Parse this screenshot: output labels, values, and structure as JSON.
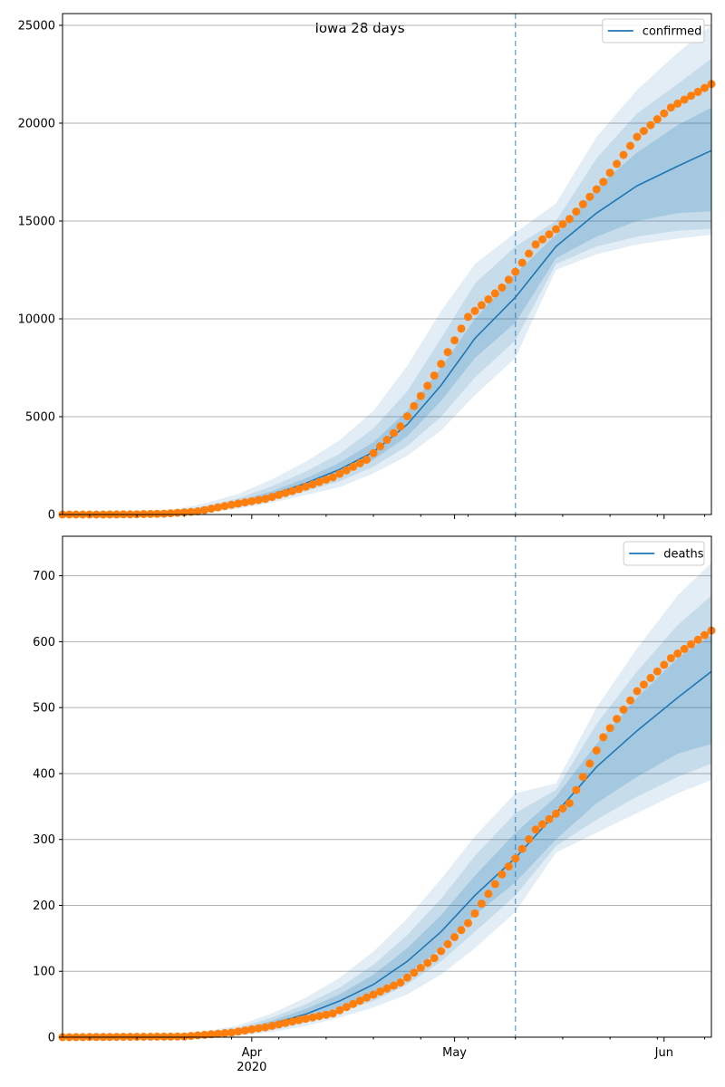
{
  "figure": {
    "title": "Iowa 28 days"
  },
  "colors": {
    "model_line": "#1f77b4",
    "band": "#1f77b4",
    "observed": "#ff7f0e",
    "forecast_marker": "#1f77b4",
    "grid": "#b0b0b0",
    "axes": "#000000"
  },
  "x_axis": {
    "start": "2020-03-04",
    "end": "2020-06-08",
    "forecast_start": "2020-05-10",
    "major_ticks": [
      {
        "date": "2020-04-01",
        "label": "Apr",
        "sublabel": "2020"
      },
      {
        "date": "2020-05-01",
        "label": "May",
        "sublabel": ""
      },
      {
        "date": "2020-06-01",
        "label": "Jun",
        "sublabel": ""
      }
    ],
    "minor_tick_dates": [
      "2020-03-08",
      "2020-03-15",
      "2020-03-22",
      "2020-03-29",
      "2020-04-05",
      "2020-04-12",
      "2020-04-19",
      "2020-04-26",
      "2020-05-03",
      "2020-05-10",
      "2020-05-17",
      "2020-05-24",
      "2020-05-31",
      "2020-06-07"
    ]
  },
  "chart_data": [
    {
      "type": "line",
      "title": "Iowa 28 days",
      "legend": [
        "confirmed"
      ],
      "legend_placement": "top-right",
      "grid": "horizontal",
      "ylim": [
        0,
        25600
      ],
      "yticks": [
        0,
        5000,
        10000,
        15000,
        20000,
        25000
      ],
      "xlim": [
        "2020-03-04",
        "2020-06-08"
      ],
      "forecast_start": "2020-05-10",
      "model": {
        "name": "confirmed",
        "dates": [
          "2020-03-04",
          "2020-03-14",
          "2020-03-20",
          "2020-03-25",
          "2020-03-30",
          "2020-04-04",
          "2020-04-09",
          "2020-04-14",
          "2020-04-19",
          "2020-04-24",
          "2020-04-29",
          "2020-05-04",
          "2020-05-10",
          "2020-05-16",
          "2020-05-22",
          "2020-05-28",
          "2020-06-03",
          "2020-06-08"
        ],
        "median": [
          0,
          20,
          80,
          250,
          550,
          1000,
          1600,
          2300,
          3200,
          4600,
          6600,
          9000,
          11100,
          13700,
          15400,
          16800,
          17800,
          18600
        ],
        "band_50": [
          [
            0,
            0
          ],
          [
            10,
            30
          ],
          [
            60,
            110
          ],
          [
            200,
            320
          ],
          [
            450,
            680
          ],
          [
            850,
            1200
          ],
          [
            1400,
            1850
          ],
          [
            2000,
            2650
          ],
          [
            2800,
            3700
          ],
          [
            4000,
            5300
          ],
          [
            5800,
            7500
          ],
          [
            8000,
            10000
          ],
          [
            9800,
            12300
          ],
          [
            13100,
            14300
          ],
          [
            14200,
            16700
          ],
          [
            15000,
            18500
          ],
          [
            15400,
            19900
          ],
          [
            15500,
            20800
          ]
        ],
        "band_80": [
          [
            0,
            0
          ],
          [
            5,
            50
          ],
          [
            40,
            160
          ],
          [
            160,
            420
          ],
          [
            380,
            830
          ],
          [
            720,
            1450
          ],
          [
            1200,
            2200
          ],
          [
            1700,
            3100
          ],
          [
            2450,
            4400
          ],
          [
            3500,
            6300
          ],
          [
            5000,
            9000
          ],
          [
            7000,
            11800
          ],
          [
            8900,
            13700
          ],
          [
            12800,
            15000
          ],
          [
            13700,
            18200
          ],
          [
            14200,
            20500
          ],
          [
            14500,
            22000
          ],
          [
            14600,
            23300
          ]
        ],
        "band_95": [
          [
            0,
            0
          ],
          [
            0,
            80
          ],
          [
            20,
            230
          ],
          [
            100,
            560
          ],
          [
            300,
            1050
          ],
          [
            600,
            1800
          ],
          [
            1000,
            2700
          ],
          [
            1400,
            3800
          ],
          [
            2100,
            5300
          ],
          [
            3000,
            7600
          ],
          [
            4300,
            10400
          ],
          [
            6100,
            12800
          ],
          [
            8000,
            14400
          ],
          [
            12500,
            15900
          ],
          [
            13300,
            19300
          ],
          [
            13800,
            21700
          ],
          [
            14100,
            23600
          ],
          [
            14300,
            25000
          ]
        ]
      },
      "observed": {
        "dates": [
          "2020-03-04",
          "2020-03-09",
          "2020-03-14",
          "2020-03-19",
          "2020-03-24",
          "2020-03-29",
          "2020-04-03",
          "2020-04-08",
          "2020-04-13",
          "2020-04-18",
          "2020-04-23",
          "2020-04-28",
          "2020-05-03",
          "2020-05-08",
          "2020-05-10",
          "2020-05-13",
          "2020-05-18",
          "2020-05-23",
          "2020-05-28",
          "2020-06-02",
          "2020-06-08"
        ],
        "values": [
          0,
          0,
          10,
          40,
          160,
          500,
          800,
          1300,
          1900,
          2800,
          4500,
          7100,
          10100,
          11600,
          12400,
          13800,
          15100,
          17000,
          19300,
          20800,
          22000
        ]
      }
    },
    {
      "type": "line",
      "title": "",
      "legend": [
        "deaths"
      ],
      "legend_placement": "top-right",
      "grid": "horizontal",
      "ylim": [
        0,
        760
      ],
      "yticks": [
        0,
        100,
        200,
        300,
        400,
        500,
        600,
        700
      ],
      "xlim": [
        "2020-03-04",
        "2020-06-08"
      ],
      "forecast_start": "2020-05-10",
      "model": {
        "name": "deaths",
        "dates": [
          "2020-03-04",
          "2020-03-24",
          "2020-03-30",
          "2020-04-04",
          "2020-04-09",
          "2020-04-14",
          "2020-04-19",
          "2020-04-24",
          "2020-04-29",
          "2020-05-04",
          "2020-05-10",
          "2020-05-16",
          "2020-05-22",
          "2020-05-28",
          "2020-06-03",
          "2020-06-08"
        ],
        "median": [
          0,
          2,
          8,
          20,
          35,
          55,
          80,
          115,
          160,
          215,
          272,
          340,
          410,
          465,
          515,
          555
        ],
        "band_50": [
          [
            0,
            0
          ],
          [
            1,
            3
          ],
          [
            6,
            11
          ],
          [
            15,
            25
          ],
          [
            28,
            43
          ],
          [
            45,
            65
          ],
          [
            65,
            95
          ],
          [
            95,
            135
          ],
          [
            135,
            185
          ],
          [
            185,
            245
          ],
          [
            235,
            310
          ],
          [
            300,
            365
          ],
          [
            355,
            445
          ],
          [
            395,
            515
          ],
          [
            430,
            575
          ],
          [
            445,
            610
          ]
        ],
        "band_80": [
          [
            0,
            0
          ],
          [
            0,
            5
          ],
          [
            4,
            14
          ],
          [
            11,
            30
          ],
          [
            22,
            50
          ],
          [
            38,
            75
          ],
          [
            55,
            110
          ],
          [
            80,
            155
          ],
          [
            115,
            210
          ],
          [
            160,
            275
          ],
          [
            215,
            340
          ],
          [
            290,
            375
          ],
          [
            330,
            475
          ],
          [
            365,
            555
          ],
          [
            395,
            625
          ],
          [
            415,
            670
          ]
        ],
        "band_95": [
          [
            0,
            0
          ],
          [
            0,
            7
          ],
          [
            2,
            18
          ],
          [
            8,
            36
          ],
          [
            17,
            60
          ],
          [
            30,
            90
          ],
          [
            45,
            130
          ],
          [
            65,
            180
          ],
          [
            95,
            240
          ],
          [
            135,
            305
          ],
          [
            190,
            370
          ],
          [
            280,
            385
          ],
          [
            310,
            500
          ],
          [
            340,
            590
          ],
          [
            370,
            670
          ],
          [
            390,
            720
          ]
        ]
      },
      "observed": {
        "dates": [
          "2020-03-04",
          "2020-03-22",
          "2020-03-29",
          "2020-04-03",
          "2020-04-08",
          "2020-04-13",
          "2020-04-18",
          "2020-04-23",
          "2020-04-28",
          "2020-05-03",
          "2020-05-08",
          "2020-05-10",
          "2020-05-13",
          "2020-05-18",
          "2020-05-23",
          "2020-05-28",
          "2020-06-02",
          "2020-06-08"
        ],
        "values": [
          0,
          1,
          7,
          15,
          26,
          36,
          60,
          83,
          120,
          173,
          247,
          271,
          315,
          355,
          455,
          525,
          575,
          617
        ]
      }
    }
  ]
}
